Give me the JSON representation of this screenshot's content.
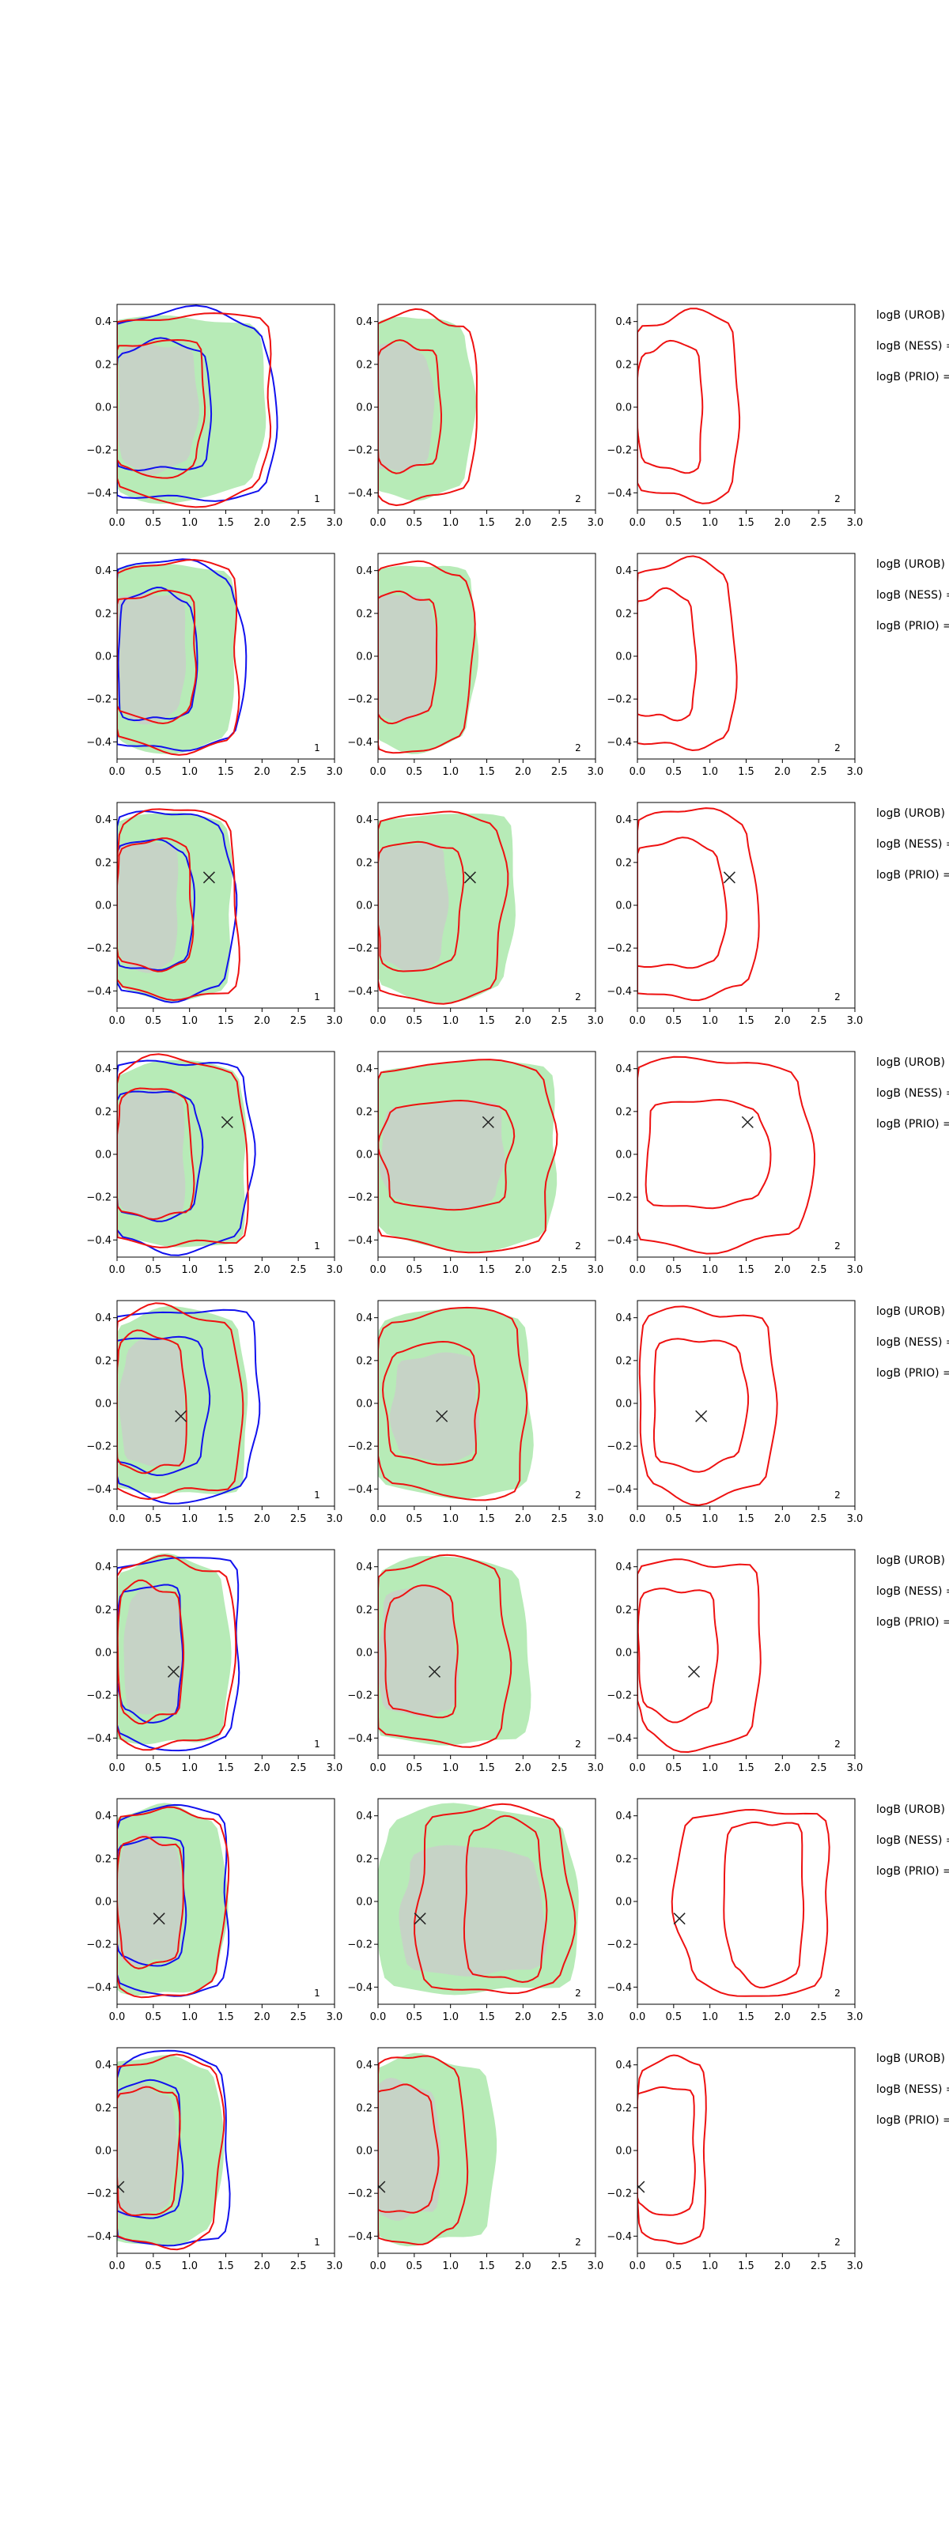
{
  "figure": {
    "xticks": [
      "0.0",
      "0.5",
      "1.0",
      "1.5",
      "2.0",
      "2.5",
      "3.0"
    ],
    "yticks": [
      "0.4",
      "0.2",
      "0.0",
      "−0.2",
      "−0.4"
    ],
    "xlim": [
      0,
      3.0
    ],
    "ylim": [
      -0.48,
      0.48
    ],
    "panel_labels": [
      "1",
      "2",
      "2"
    ],
    "colors": {
      "green_fill": "#b7ebb7",
      "grey_fill": "#c6d3c6",
      "red": "#ee1111",
      "blue": "#1111ee",
      "marker": "#222222"
    },
    "annotations": [
      "logB (UROB) =",
      "logB (NESS) =",
      "logB (PRIO) ="
    ]
  },
  "chart_data": [
    {
      "type": "contour",
      "row": 1,
      "marker": null
    },
    {
      "type": "contour",
      "row": 2,
      "marker": null
    },
    {
      "type": "contour",
      "row": 3,
      "marker": [
        1.27,
        0.13
      ]
    },
    {
      "type": "contour",
      "row": 4,
      "marker": [
        1.52,
        0.15
      ]
    },
    {
      "type": "contour",
      "row": 5,
      "marker": [
        0.88,
        -0.06
      ]
    },
    {
      "type": "contour",
      "row": 6,
      "marker": [
        0.78,
        -0.09
      ]
    },
    {
      "type": "contour",
      "row": 7,
      "marker": [
        0.58,
        -0.08
      ]
    },
    {
      "type": "contour",
      "row": 8,
      "marker": [
        0.02,
        -0.17
      ]
    }
  ]
}
